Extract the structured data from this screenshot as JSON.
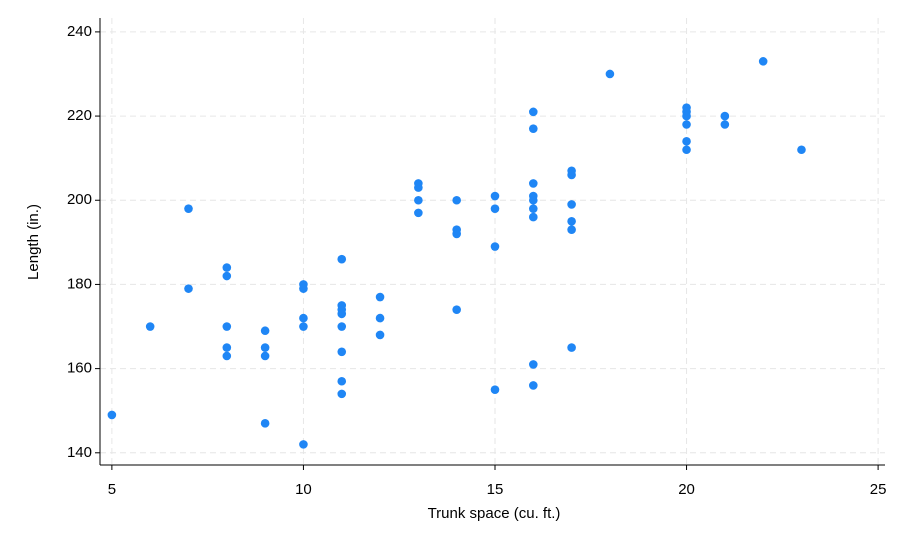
{
  "chart_data": {
    "type": "scatter",
    "x_label": "Trunk space (cu. ft.)",
    "y_label": "Length (in.)",
    "color": "#1f86f5",
    "grid": true,
    "xlim": [
      4.69,
      25.18
    ],
    "ylim": [
      137.1,
      243.3
    ],
    "xticks": [
      5,
      10,
      15,
      20,
      25
    ],
    "yticks": [
      140,
      160,
      180,
      200,
      220,
      240
    ],
    "x": [
      5,
      6,
      7,
      7,
      8,
      8,
      8,
      8,
      8,
      9,
      9,
      9,
      9,
      10,
      10,
      10,
      10,
      10,
      11,
      11,
      11,
      11,
      11,
      11,
      11,
      11,
      12,
      12,
      12,
      13,
      13,
      13,
      13,
      14,
      14,
      14,
      14,
      15,
      15,
      15,
      15,
      16,
      16,
      16,
      16,
      16,
      16,
      16,
      16,
      16,
      17,
      17,
      17,
      17,
      17,
      17,
      18,
      20,
      20,
      20,
      20,
      20,
      20,
      21,
      21,
      22,
      23
    ],
    "values": [
      149,
      170,
      198,
      179,
      184,
      182,
      170,
      165,
      163,
      169,
      165,
      163,
      147,
      180,
      179,
      172,
      170,
      142,
      186,
      175,
      174,
      173,
      170,
      164,
      157,
      154,
      177,
      172,
      168,
      204,
      203,
      200,
      197,
      200,
      193,
      192,
      174,
      201,
      198,
      189,
      155,
      221,
      217,
      204,
      201,
      200,
      198,
      196,
      161,
      156,
      207,
      206,
      199,
      195,
      193,
      165,
      230,
      222,
      221,
      220,
      218,
      214,
      212,
      220,
      218,
      233,
      212
    ]
  }
}
